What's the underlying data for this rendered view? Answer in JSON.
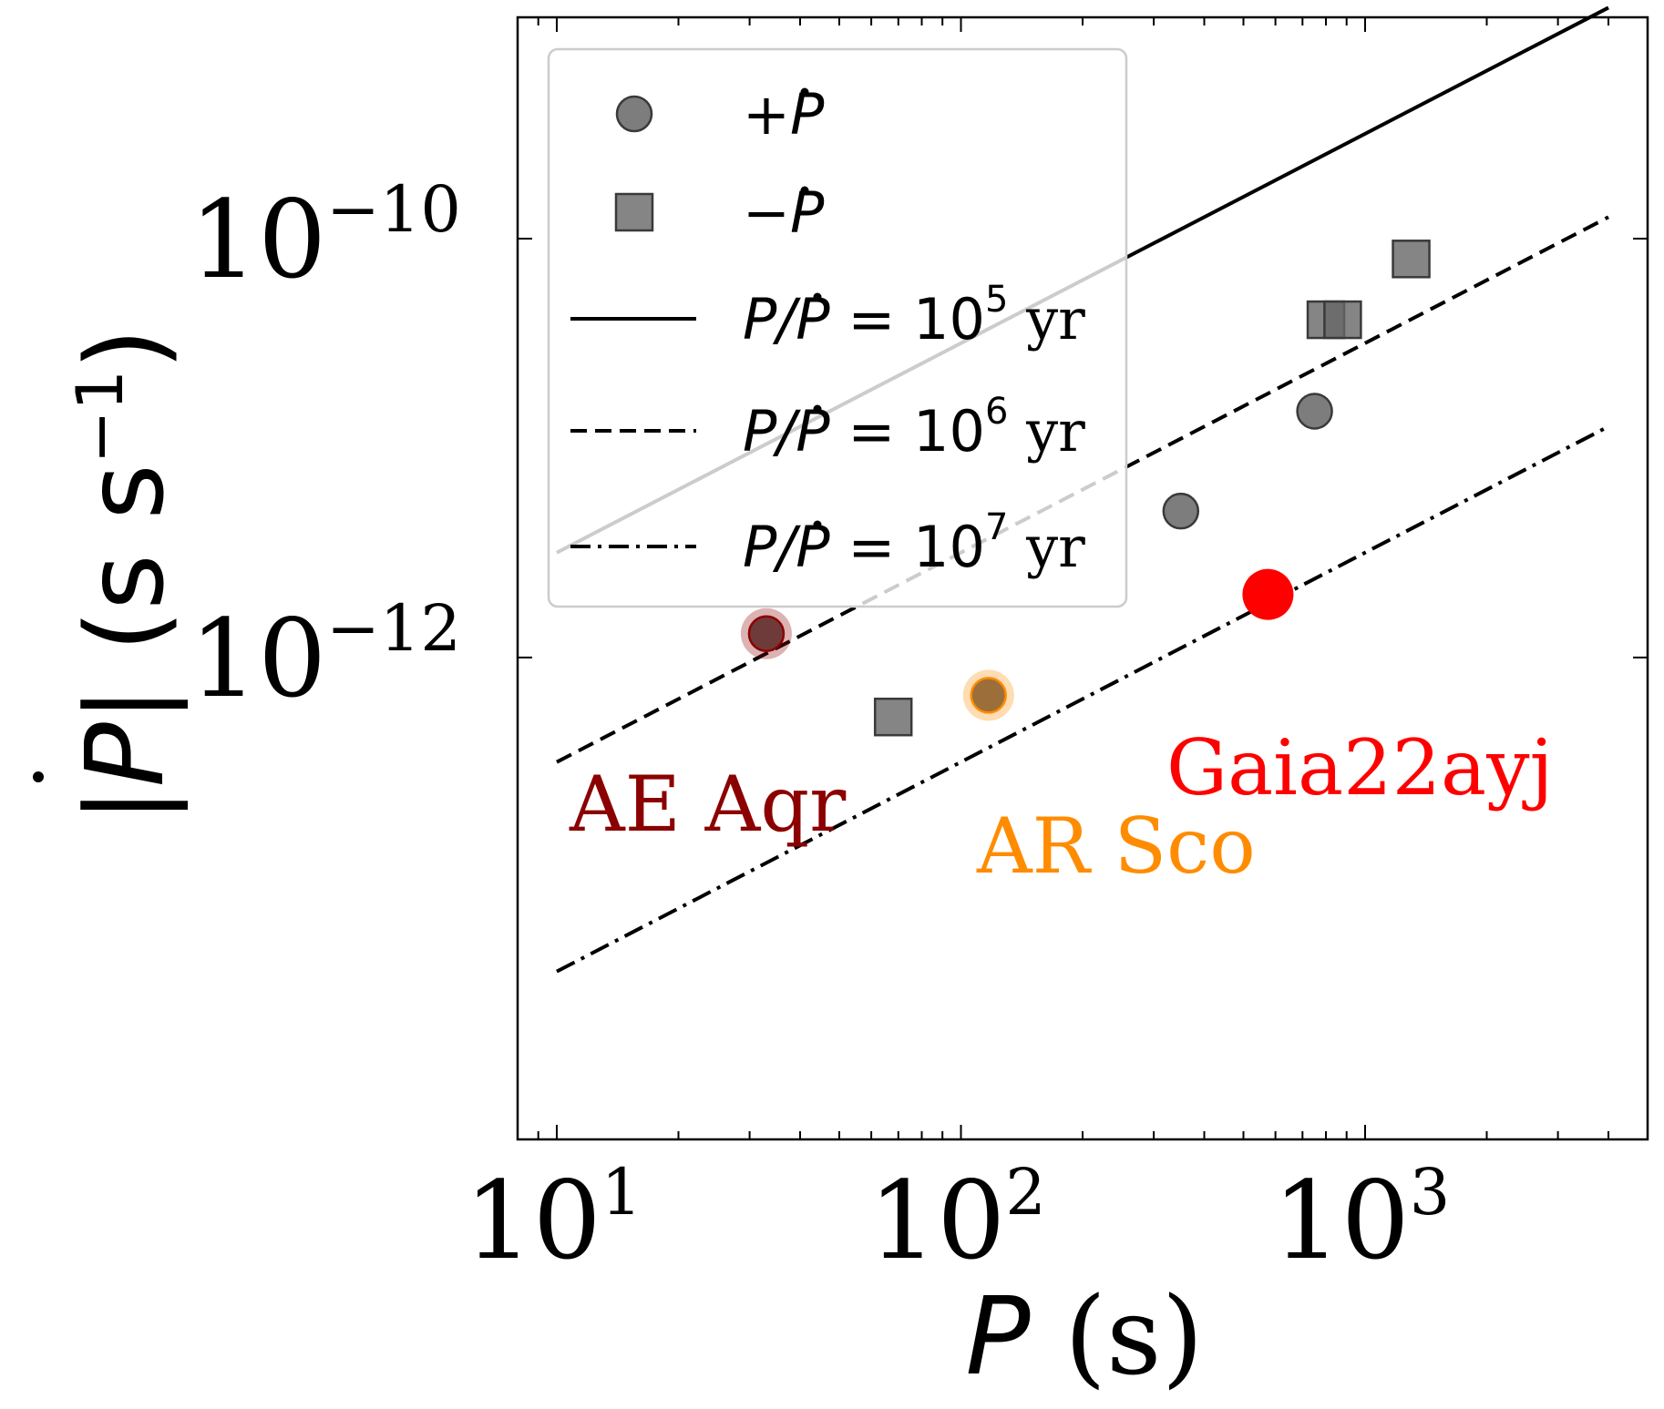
{
  "chart_data": {
    "type": "scatter",
    "xscale": "log",
    "yscale": "log",
    "xlim": [
      8.0,
      5000
    ],
    "ylim": [
      5e-15,
      1.14e-09
    ],
    "xlabel_italic": "P",
    "xlabel_rest": "(s)",
    "ylabel_pre": "|",
    "ylabel_italic": "P",
    "ylabel_post": "| (s s",
    "ylabel_exp": "−1",
    "ylabel_close": ")",
    "x_ticks": [
      {
        "base": "10",
        "exp": "1",
        "value": 10
      },
      {
        "base": "10",
        "exp": "2",
        "value": 100
      },
      {
        "base": "10",
        "exp": "3",
        "value": 1000
      }
    ],
    "y_ticks": [
      {
        "base": "10",
        "exp": "−10",
        "value": 1e-10
      },
      {
        "base": "10",
        "exp": "−12",
        "value": 1e-12
      }
    ],
    "lines": [
      {
        "name": "P/Ṗ = 10^5 yr",
        "style": "solid",
        "timescale_yr": 100000,
        "x_range": [
          10,
          4000
        ]
      },
      {
        "name": "P/Ṗ = 10^6 yr",
        "style": "dashed",
        "timescale_yr": 1000000,
        "x_range": [
          10,
          4000
        ]
      },
      {
        "name": "P/Ṗ = 10^7 yr",
        "style": "dashdot",
        "timescale_yr": 10000000,
        "x_range": [
          10,
          4000
        ]
      }
    ],
    "series": [
      {
        "name": "+Ṗ",
        "marker": "circle",
        "color": "#666666",
        "points": [
          {
            "x": 350,
            "y": 5e-12
          },
          {
            "x": 750,
            "y": 1.5e-11
          }
        ]
      },
      {
        "name": "−Ṗ",
        "marker": "square",
        "color": "#666666",
        "points": [
          {
            "x": 68,
            "y": 5.2e-13
          },
          {
            "x": 800,
            "y": 4.1e-11
          },
          {
            "x": 880,
            "y": 4.1e-11
          },
          {
            "x": 1300,
            "y": 8e-11
          }
        ]
      }
    ],
    "highlights": [
      {
        "name": "AE Aqr",
        "x": 33,
        "y": 1.3e-12,
        "color": "#8b0000",
        "face": "#6f3a3a"
      },
      {
        "name": "AR Sco",
        "x": 117,
        "y": 6.6e-13,
        "color": "#ff8c00",
        "face": "#9c6e3a"
      },
      {
        "name": "Gaia22ayj",
        "x": 575,
        "y": 2e-12,
        "color": "#ff0000",
        "face": "#ff0000"
      }
    ],
    "legend": {
      "placement": "top-left",
      "entries": [
        {
          "symbol": "circle",
          "sign": "+",
          "var": "P"
        },
        {
          "symbol": "square",
          "sign": "−",
          "var": "P"
        },
        {
          "symbol": "solid",
          "lhs": "P/P",
          "eq": "= 10",
          "exp": "5",
          "unit": "yr"
        },
        {
          "symbol": "dashed",
          "lhs": "P/P",
          "eq": "= 10",
          "exp": "6",
          "unit": "yr"
        },
        {
          "symbol": "dashdot",
          "lhs": "P/P",
          "eq": "= 10",
          "exp": "7",
          "unit": "yr"
        }
      ]
    }
  }
}
